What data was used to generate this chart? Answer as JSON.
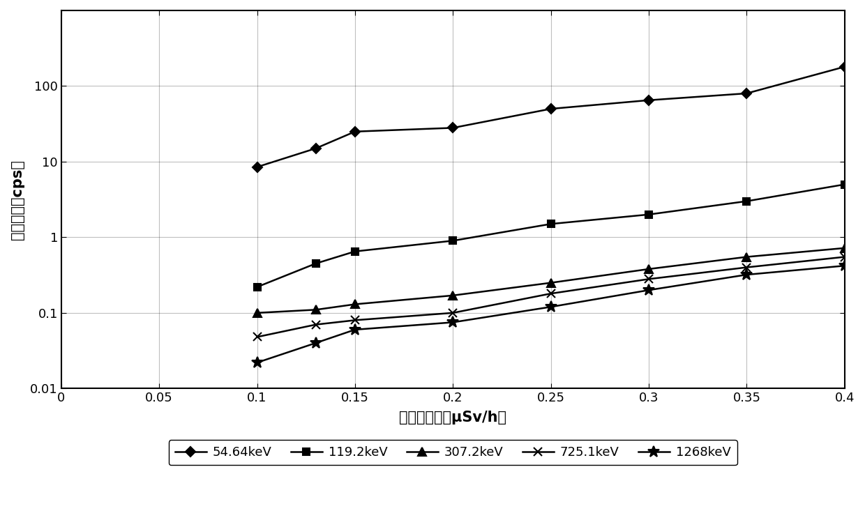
{
  "series": [
    {
      "label": "54.64keV",
      "marker": "D",
      "x": [
        0.1,
        0.13,
        0.15,
        0.2,
        0.25,
        0.3,
        0.35,
        0.4
      ],
      "y": [
        8.5,
        15,
        25,
        28,
        50,
        65,
        80,
        180
      ]
    },
    {
      "label": "119.2keV",
      "marker": "s",
      "x": [
        0.1,
        0.13,
        0.15,
        0.2,
        0.25,
        0.3,
        0.35,
        0.4
      ],
      "y": [
        0.22,
        0.45,
        0.65,
        0.9,
        1.5,
        2.0,
        3.0,
        5.0
      ]
    },
    {
      "label": "307.2keV",
      "marker": "^",
      "x": [
        0.1,
        0.13,
        0.15,
        0.2,
        0.25,
        0.3,
        0.35,
        0.4
      ],
      "y": [
        0.1,
        0.11,
        0.13,
        0.17,
        0.25,
        0.38,
        0.55,
        0.72
      ]
    },
    {
      "label": "725.1keV",
      "marker": "x",
      "x": [
        0.1,
        0.13,
        0.15,
        0.2,
        0.25,
        0.3,
        0.35,
        0.4
      ],
      "y": [
        0.048,
        0.07,
        0.08,
        0.1,
        0.18,
        0.28,
        0.4,
        0.55
      ]
    },
    {
      "label": "1268keV",
      "marker": "*",
      "x": [
        0.1,
        0.13,
        0.15,
        0.2,
        0.25,
        0.3,
        0.35,
        0.4
      ],
      "y": [
        0.022,
        0.04,
        0.06,
        0.075,
        0.12,
        0.2,
        0.32,
        0.42
      ]
    }
  ],
  "xlabel": "中子剂量率（μSv/h）",
  "ylabel": "净计数率（cps）",
  "xlim": [
    0,
    0.4
  ],
  "ylim_log": [
    0.01,
    1000
  ],
  "xticks": [
    0,
    0.05,
    0.1,
    0.15,
    0.2,
    0.25,
    0.3,
    0.35,
    0.4
  ],
  "xtick_labels": [
    "0",
    "0.05",
    "0.1",
    "0.15",
    "0.2",
    "0.25",
    "0.3",
    "0.35",
    "0.4"
  ],
  "yticks_log": [
    0.01,
    0.1,
    1,
    10,
    100
  ],
  "ytick_labels": [
    "0.01",
    "0.1",
    "1",
    "10",
    "100"
  ],
  "background_color": "#ffffff",
  "line_color": "#000000",
  "marker_size": 7,
  "line_width": 1.8,
  "grid_color": "#000000",
  "grid_alpha": 0.25,
  "font_size_ticks": 13,
  "font_size_label": 15,
  "font_size_legend": 13
}
